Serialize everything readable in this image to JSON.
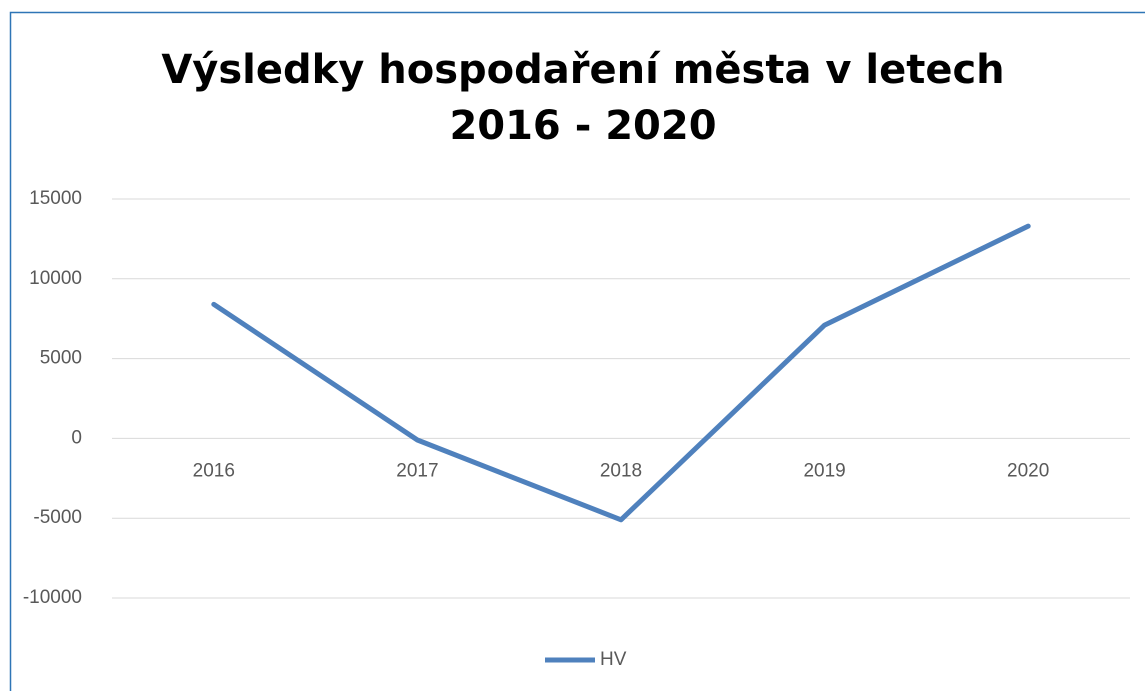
{
  "chart_data": {
    "type": "line",
    "title": [
      "Výsledky hospodaření města  v letech",
      "2016 - 2020"
    ],
    "categories": [
      "2016",
      "2017",
      "2018",
      "2019",
      "2020"
    ],
    "series": [
      {
        "name": "HV",
        "color": "#4f81bd",
        "values": [
          8400,
          -100,
          -5100,
          7100,
          13300
        ]
      }
    ],
    "ylim": [
      -10000,
      15000
    ],
    "yticks": [
      -10000,
      -5000,
      0,
      5000,
      10000,
      15000
    ],
    "grid": true,
    "legend": "bottom"
  }
}
